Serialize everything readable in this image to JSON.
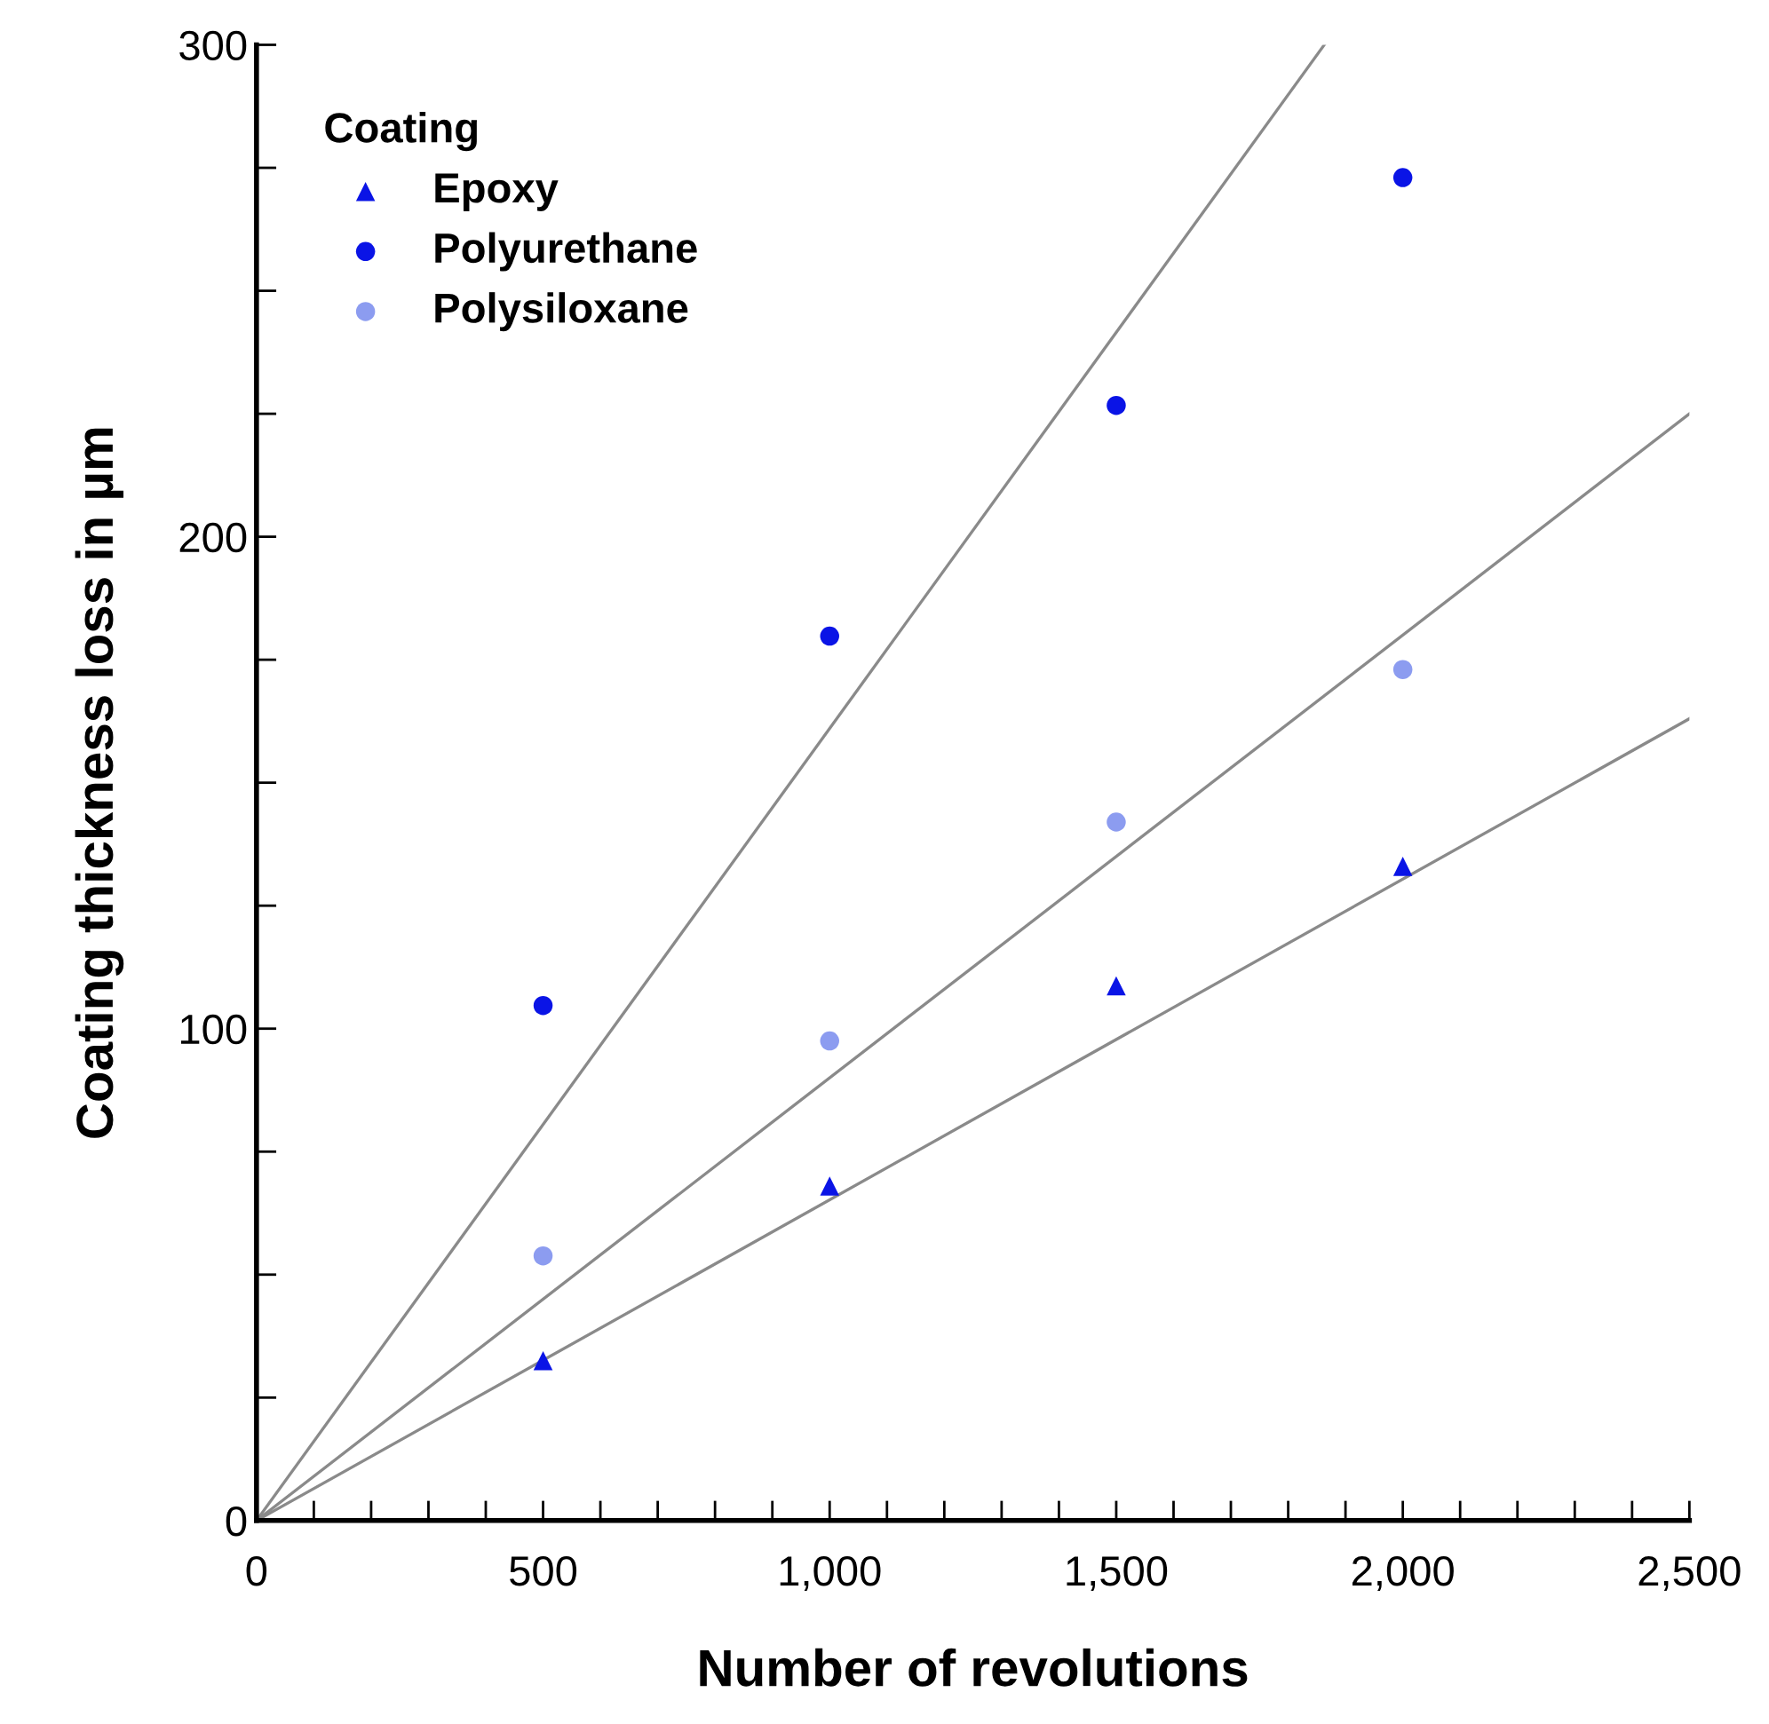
{
  "chart_data": {
    "type": "scatter",
    "xlabel": "Number of revolutions",
    "ylabel": "Coating thickness loss in µm",
    "legend_title": "Coating",
    "legend": "top left",
    "grid": false,
    "xlim": [
      0,
      2500
    ],
    "ylim": [
      0,
      300
    ],
    "xticks": [
      0,
      {
        "value": 100,
        "label": null
      },
      {
        "value": 200,
        "label": null
      },
      {
        "value": 300,
        "label": null
      },
      {
        "value": 400,
        "label": null
      },
      500,
      {
        "value": 600,
        "label": null
      },
      {
        "value": 700,
        "label": null
      },
      {
        "value": 800,
        "label": null
      },
      {
        "value": 900,
        "label": null
      },
      {
        "value": 1000,
        "label": "1,000"
      },
      {
        "value": 1100,
        "label": null
      },
      {
        "value": 1200,
        "label": null
      },
      {
        "value": 1300,
        "label": null
      },
      {
        "value": 1400,
        "label": null
      },
      {
        "value": 1500,
        "label": "1,500"
      },
      {
        "value": 1600,
        "label": null
      },
      {
        "value": 1700,
        "label": null
      },
      {
        "value": 1800,
        "label": null
      },
      {
        "value": 1900,
        "label": null
      },
      {
        "value": 2000,
        "label": "2,000"
      },
      {
        "value": 2100,
        "label": null
      },
      {
        "value": 2200,
        "label": null
      },
      {
        "value": 2300,
        "label": null
      },
      {
        "value": 2400,
        "label": null
      },
      {
        "value": 2500,
        "label": "2,500"
      }
    ],
    "yticks": [
      0,
      {
        "value": 25,
        "label": null
      },
      {
        "value": 50,
        "label": null
      },
      {
        "value": 75,
        "label": null
      },
      100,
      {
        "value": 125,
        "label": null
      },
      {
        "value": 150,
        "label": null
      },
      {
        "value": 175,
        "label": null
      },
      200,
      {
        "value": 225,
        "label": null
      },
      {
        "value": 250,
        "label": null
      },
      {
        "value": 275,
        "label": null
      },
      300
    ],
    "series": [
      {
        "name": "Epoxy",
        "marker": "triangle",
        "color": "#0a14e6",
        "x": [
          500,
          1000,
          1500,
          2000
        ],
        "values": [
          32.5,
          68,
          108.7,
          133
        ]
      },
      {
        "name": "Polyurethane",
        "marker": "circle",
        "color": "#0a14e6",
        "x": [
          500,
          1000,
          1500,
          2000
        ],
        "values": [
          104.7,
          179.8,
          226.7,
          273
        ]
      },
      {
        "name": "Polysiloxane",
        "marker": "circle",
        "color": "#8c9cf0",
        "x": [
          500,
          1000,
          1500,
          2000
        ],
        "values": [
          53.8,
          97.5,
          142,
          173
        ]
      },
      {
        "type": "line",
        "color": "#8a8a8a",
        "x": [
          0,
          1863
        ],
        "values": [
          0,
          300
        ]
      },
      {
        "type": "line",
        "color": "#8a8a8a",
        "x": [
          0,
          2500
        ],
        "values": [
          0,
          225
        ]
      },
      {
        "type": "line",
        "color": "#8a8a8a",
        "x": [
          0,
          2500
        ],
        "values": [
          0,
          163
        ]
      }
    ]
  }
}
